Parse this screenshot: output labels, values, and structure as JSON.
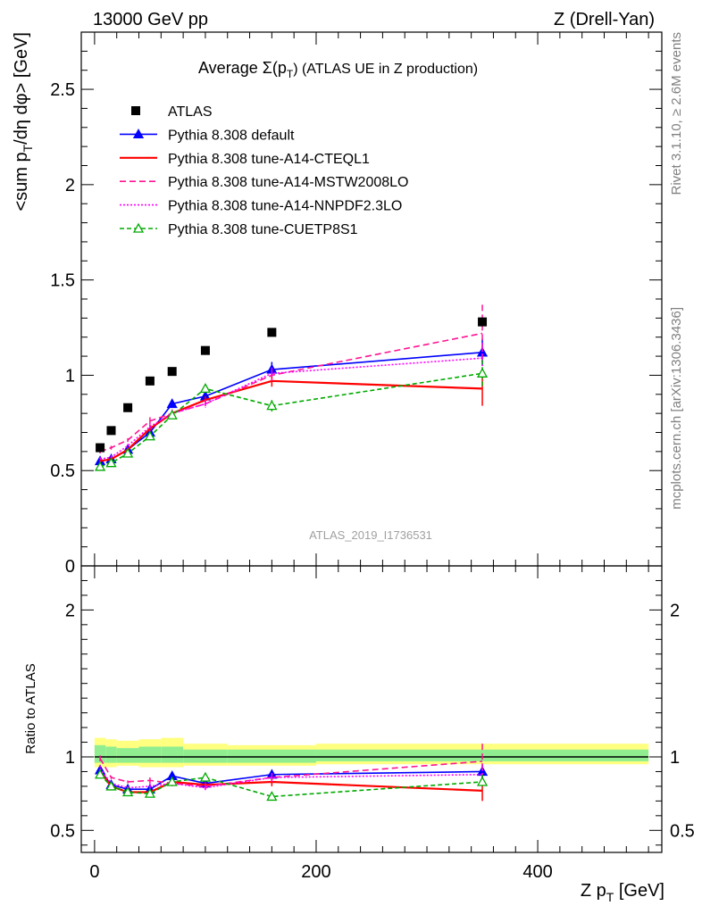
{
  "header": {
    "left": "13000 GeV pp",
    "right": "Z (Drell-Yan)"
  },
  "side": {
    "rivet": "Rivet 3.1.10, ≥ 2.6M events",
    "mcplots": "mcplots.cern.ch [arXiv:1306.3436]"
  },
  "chart_data": {
    "type": "line",
    "title_prefix": "Average ",
    "title_sigma": "Σ(p",
    "title_sub": "T",
    "title_suffix": ") (ATLAS UE in Z production)",
    "watermark": "ATLAS_2019_I1736531",
    "ylabel_main": "<sum p",
    "ylabel_sub": "T",
    "ylabel_rest": "/dη dφ> [GeV]",
    "ylabel_ratio": "Ratio to ATLAS",
    "xlabel": "Z p",
    "xlabel_sub": "T",
    "xlabel_unit": " [GeV]",
    "xlim": [
      -12,
      512
    ],
    "ylim_main": [
      0,
      2.8
    ],
    "ylim_ratio": [
      0.35,
      2.3
    ],
    "xticks": [
      0,
      200,
      400
    ],
    "xtick_labels": [
      "0",
      "200",
      "400"
    ],
    "yticks_main": [
      0,
      0.5,
      1,
      1.5,
      2,
      2.5
    ],
    "ytick_labels_main": [
      "0",
      "0.5",
      "1",
      "1.5",
      "2",
      "2.5"
    ],
    "yticks_ratio": [
      0.5,
      1,
      2
    ],
    "ytick_labels_ratio": [
      "0.5",
      "1",
      "2"
    ],
    "x": [
      5,
      15,
      30,
      50,
      70,
      100,
      160,
      350
    ],
    "data": {
      "name": "ATLAS",
      "values": [
        0.62,
        0.71,
        0.83,
        0.97,
        1.02,
        1.13,
        1.225,
        1.28
      ]
    },
    "bands": [
      {
        "x0": 0,
        "x1": 10,
        "y_lo": 0.93,
        "y_hi": 1.13,
        "g_lo": 0.96,
        "g_hi": 1.08
      },
      {
        "x0": 10,
        "x1": 20,
        "y_lo": 0.93,
        "y_hi": 1.12,
        "g_lo": 0.96,
        "g_hi": 1.07
      },
      {
        "x0": 20,
        "x1": 40,
        "y_lo": 0.94,
        "y_hi": 1.11,
        "g_lo": 0.96,
        "g_hi": 1.06
      },
      {
        "x0": 40,
        "x1": 60,
        "y_lo": 0.93,
        "y_hi": 1.12,
        "g_lo": 0.96,
        "g_hi": 1.07
      },
      {
        "x0": 60,
        "x1": 80,
        "y_lo": 0.93,
        "y_hi": 1.13,
        "g_lo": 0.96,
        "g_hi": 1.07
      },
      {
        "x0": 80,
        "x1": 120,
        "y_lo": 0.94,
        "y_hi": 1.09,
        "g_lo": 0.96,
        "g_hi": 1.05
      },
      {
        "x0": 120,
        "x1": 200,
        "y_lo": 0.94,
        "y_hi": 1.08,
        "g_lo": 0.96,
        "g_hi": 1.05
      },
      {
        "x0": 200,
        "x1": 500,
        "y_lo": 0.95,
        "y_hi": 1.09,
        "g_lo": 0.97,
        "g_hi": 1.05
      }
    ],
    "series": [
      {
        "name": "Pythia 8.308 default",
        "color": "#0000ff",
        "dash": "",
        "marker": "triangle-filled",
        "values": [
          0.55,
          0.56,
          0.61,
          0.7,
          0.85,
          0.89,
          1.03,
          1.12
        ],
        "errors": [
          0.01,
          0.01,
          0.01,
          0.02,
          0.02,
          0.02,
          0.04,
          0.07
        ],
        "ratio": [
          0.91,
          0.81,
          0.78,
          0.78,
          0.87,
          0.82,
          0.88,
          0.9
        ],
        "ratio_err": [
          0.02,
          0.01,
          0.01,
          0.02,
          0.02,
          0.02,
          0.03,
          0.05
        ]
      },
      {
        "name": "Pythia 8.308 tune-A14-CTEQL1",
        "color": "#ff0000",
        "dash": "",
        "marker": "none",
        "values": [
          0.55,
          0.56,
          0.61,
          0.72,
          0.8,
          0.87,
          0.97,
          0.93
        ],
        "errors": [
          0.01,
          0.01,
          0.01,
          0.02,
          0.02,
          0.02,
          0.03,
          0.09
        ],
        "ratio": [
          0.9,
          0.8,
          0.76,
          0.76,
          0.83,
          0.81,
          0.83,
          0.77
        ],
        "ratio_err": [
          0.02,
          0.01,
          0.01,
          0.02,
          0.02,
          0.02,
          0.03,
          0.07
        ]
      },
      {
        "name": "Pythia 8.308 tune-A14-MSTW2008LO",
        "color": "#ff1493",
        "dash": "7,4",
        "marker": "none",
        "values": [
          0.6,
          0.62,
          0.66,
          0.76,
          0.8,
          0.85,
          1.0,
          1.22
        ],
        "errors": [
          0.01,
          0.01,
          0.01,
          0.02,
          0.02,
          0.02,
          0.03,
          0.15
        ],
        "ratio": [
          0.99,
          0.86,
          0.83,
          0.84,
          0.82,
          0.8,
          0.86,
          0.97
        ],
        "ratio_err": [
          0.02,
          0.01,
          0.01,
          0.02,
          0.02,
          0.02,
          0.03,
          0.12
        ]
      },
      {
        "name": "Pythia 8.308 tune-A14-NNPDF2.3LO",
        "color": "#ff00ff",
        "dash": "2,2",
        "marker": "none",
        "values": [
          0.56,
          0.57,
          0.63,
          0.73,
          0.8,
          0.85,
          1.01,
          1.09
        ],
        "errors": [
          0.01,
          0.01,
          0.01,
          0.02,
          0.02,
          0.02,
          0.03,
          0.08
        ],
        "ratio": [
          0.92,
          0.82,
          0.79,
          0.8,
          0.82,
          0.79,
          0.86,
          0.88
        ],
        "ratio_err": [
          0.02,
          0.01,
          0.01,
          0.02,
          0.02,
          0.02,
          0.03,
          0.06
        ]
      },
      {
        "name": "Pythia 8.308 tune-CUETP8S1",
        "color": "#00aa00",
        "dash": "5,3",
        "marker": "triangle-open",
        "values": [
          0.52,
          0.54,
          0.59,
          0.68,
          0.79,
          0.93,
          0.84,
          1.01
        ],
        "errors": [
          0.01,
          0.01,
          0.01,
          0.02,
          0.02,
          0.02,
          0.03,
          0.07
        ],
        "ratio": [
          0.88,
          0.8,
          0.76,
          0.75,
          0.83,
          0.86,
          0.73,
          0.83
        ],
        "ratio_err": [
          0.02,
          0.01,
          0.01,
          0.02,
          0.02,
          0.02,
          0.02,
          0.05
        ]
      }
    ],
    "legend_position": "top-left",
    "grid": false
  }
}
